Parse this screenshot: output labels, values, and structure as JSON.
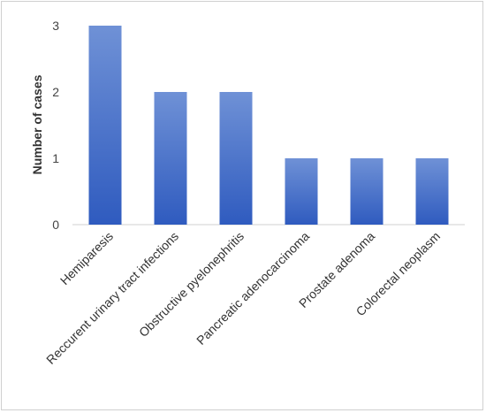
{
  "chart_data": {
    "type": "bar",
    "title": "",
    "xlabel": "",
    "ylabel": "Number of cases",
    "categories": [
      "Hemiparesis",
      "Reccurent urinary tract infections",
      "Obstructive pyelonephritis",
      "Pancreatic adenocarcinoma",
      "Prostate adenoma",
      "Colorectal neoplasm"
    ],
    "values": [
      3,
      2,
      2,
      1,
      1,
      1
    ],
    "ylim": [
      0,
      3
    ],
    "yticks": [
      "0",
      "1",
      "2",
      "3"
    ],
    "grid": false,
    "legend": "none",
    "bar_color_top": "#6f91d6",
    "bar_color_bottom": "#2f5bbf"
  }
}
